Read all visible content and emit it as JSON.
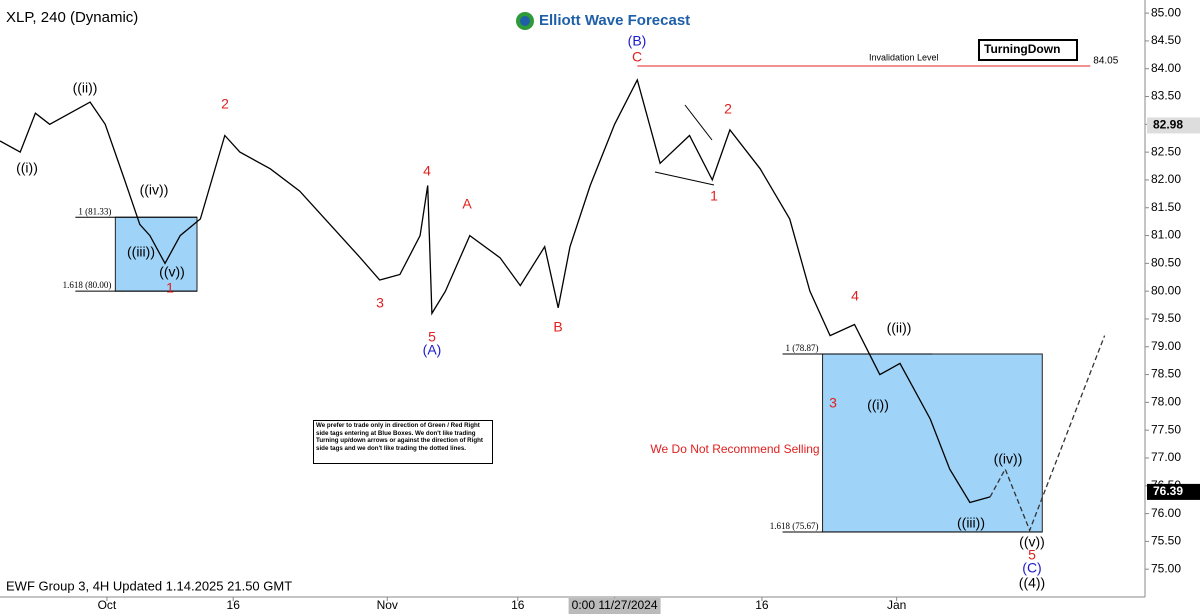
{
  "chart_data": {
    "type": "line",
    "title": "XLP, 240 (Dynamic)",
    "brand": "Elliott Wave Forecast",
    "footer": "EWF Group 3, 4H Updated 1.14.2025 21.50 GMT",
    "badge": "TurningDown",
    "warning": "We Do Not Recommend Selling",
    "note": "We prefer to trade only in direction of Green / Red Right side tags entering at Blue Boxes. We don't like trading Turning up/down arrows or against the direction of Right side tags and we don't like trading the dotted lines.",
    "color": "#000000",
    "x": [
      0,
      2.4,
      4.2,
      5.9,
      10.7,
      12.5,
      14.8,
      16.6,
      17.8,
      19.6,
      21.4,
      23.8,
      26.7,
      28.5,
      32.1,
      35.6,
      39.2,
      42.8,
      45.1,
      47.5,
      49.9,
      50.8,
      51.3,
      52.9,
      55.8,
      59.4,
      61.8,
      64.7,
      66.3,
      67.7,
      70.1,
      73.0,
      75.7,
      78.4,
      81.9,
      84.6,
      86.7,
      90.3,
      93.8,
      96.2,
      98.6,
      101.5,
      104.5,
      106.9,
      110.5,
      112.8,
      115.2,
      117.6
    ],
    "values": [
      82.7,
      82.5,
      83.2,
      83.0,
      83.4,
      83.0,
      82.0,
      81.2,
      81.0,
      80.5,
      81.0,
      81.3,
      82.8,
      82.5,
      82.2,
      81.8,
      81.2,
      80.6,
      80.2,
      80.3,
      81.0,
      81.9,
      79.6,
      80.0,
      81.0,
      80.6,
      80.1,
      80.8,
      79.7,
      80.8,
      81.9,
      83.0,
      83.8,
      82.3,
      82.8,
      82.0,
      82.9,
      82.2,
      81.3,
      80.0,
      79.2,
      79.4,
      78.5,
      78.7,
      77.7,
      76.8,
      76.2,
      76.3
    ],
    "projection": {
      "x": [
        117.6,
        119.4,
        122.3,
        131.2
      ],
      "values": [
        76.3,
        76.8,
        75.7,
        79.2
      ]
    },
    "xlim": [
      0,
      136
    ],
    "xticks": [
      {
        "value": 12.7,
        "label": "Oct"
      },
      {
        "value": 27.7,
        "label": "16"
      },
      {
        "value": 46,
        "label": "Nov"
      },
      {
        "value": 61.5,
        "label": "16"
      },
      {
        "value": 73.0,
        "label": "0:00 11/27/2024"
      },
      {
        "value": 90.5,
        "label": "16"
      },
      {
        "value": 106.5,
        "label": "Jan"
      }
    ],
    "ylim": [
      74.5,
      85.2
    ],
    "yticks": [
      {
        "value": 75,
        "label": "75.00"
      },
      {
        "value": 75.5,
        "label": "75.50"
      },
      {
        "value": 76,
        "label": "76.00"
      },
      {
        "value": 76.5,
        "label": "76.50"
      },
      {
        "value": 77,
        "label": "77.00"
      },
      {
        "value": 77.5,
        "label": "77.50"
      },
      {
        "value": 78,
        "label": "78.00"
      },
      {
        "value": 78.5,
        "label": "78.50"
      },
      {
        "value": 79,
        "label": "79.00"
      },
      {
        "value": 79.5,
        "label": "79.50"
      },
      {
        "value": 80,
        "label": "80.00"
      },
      {
        "value": 80.5,
        "label": "80.50"
      },
      {
        "value": 81,
        "label": "81.00"
      },
      {
        "value": 81.5,
        "label": "81.50"
      },
      {
        "value": 82,
        "label": "82.00"
      },
      {
        "value": 82.5,
        "label": "82.50"
      },
      {
        "value": 83,
        "label": "83.00"
      },
      {
        "value": 83.5,
        "label": "83.50"
      },
      {
        "value": 84,
        "label": "84.00"
      },
      {
        "value": 84.5,
        "label": "84.50"
      },
      {
        "value": 85,
        "label": "85.00"
      }
    ],
    "invalidation": {
      "label": "Invalidation Level",
      "value": 84.05,
      "x0": 75.7,
      "x1": 129.5
    },
    "marked_price": 82.98,
    "last_price": 76.39,
    "boxes": [
      {
        "label_top": "1 (81.33)",
        "label_bottom": "1.618 (80.00)",
        "top": 81.33,
        "bottom": 80.0,
        "x0": 13.7,
        "x1": 23.4
      },
      {
        "label_top": "1 (78.87)",
        "label_bottom": "1.618 (75.67)",
        "top": 78.87,
        "bottom": 75.67,
        "x0": 97.7,
        "x1": 123.8
      }
    ],
    "wave_labels": [
      "((i))",
      "((ii))",
      "((iv))",
      "((iii))",
      "((v))",
      "1",
      "2",
      "3",
      "4",
      "5",
      "(A)",
      "A",
      "B",
      "(B)",
      "C",
      "2",
      "1",
      "3",
      "4",
      "((i))",
      "((ii))",
      "((iii))",
      "((iv))",
      "((v))",
      "5",
      "(C)",
      "((4))"
    ]
  }
}
